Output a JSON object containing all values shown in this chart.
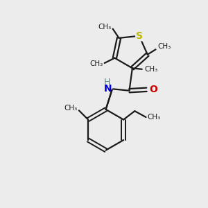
{
  "background_color": "#ececec",
  "bond_color": "#1a1a1a",
  "S_color": "#b8b800",
  "N_color": "#0000cc",
  "O_color": "#cc0000",
  "H_color": "#4a9090",
  "figsize": [
    3.0,
    3.0
  ],
  "dpi": 100,
  "xlim": [
    0,
    10
  ],
  "ylim": [
    0,
    10
  ]
}
